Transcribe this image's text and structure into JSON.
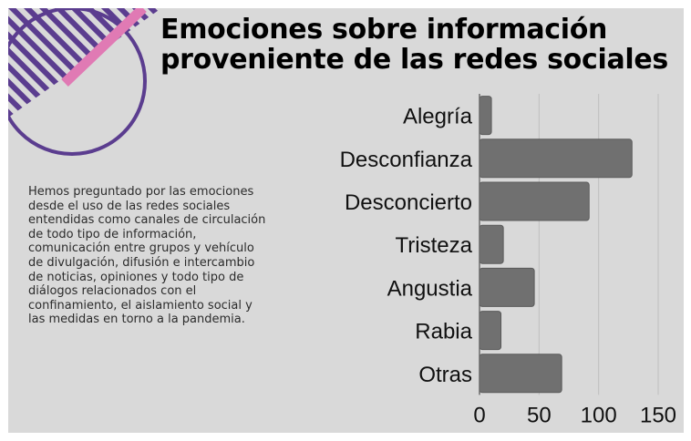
{
  "infographic": {
    "title": "Emociones sobre información proveniente de las redes sociales",
    "description": "Hemos preguntado por las emociones desde el uso de las redes sociales entendidas como canales de circulación de todo tipo de información, comunicación entre grupos y vehículo de divulgación, difusión e intercambio de noticias, opiniones y todo tipo de diálogos relacionados con el confinamiento, el aislamiento social y las medidas en torno a la pandemia."
  },
  "colors": {
    "background": "#d9d9d9",
    "bar": "#707070",
    "bar_stroke": "#5a5a5a",
    "grid": "#bfbfbf",
    "accent_purple": "#5b3d8f",
    "accent_pink": "#e07ab4"
  },
  "chart_data": {
    "type": "bar",
    "orientation": "horizontal",
    "categories": [
      "Alegría",
      "Desconfianza",
      "Desconcierto",
      "Tristeza",
      "Angustia",
      "Rabia",
      "Otras"
    ],
    "values": [
      10,
      128,
      92,
      20,
      46,
      18,
      69
    ],
    "xlim": [
      0,
      150
    ],
    "x_ticks": [
      0,
      50,
      100,
      150
    ],
    "title": "",
    "xlabel": "",
    "ylabel": "",
    "grid": "vertical",
    "legend": "none"
  }
}
